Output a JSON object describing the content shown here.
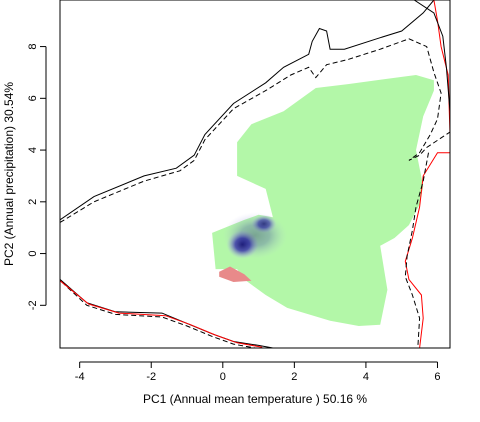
{
  "chart_data": {
    "type": "area",
    "title": "",
    "xlabel": "PC1 (Annual mean temperature ) 50.16 %",
    "ylabel": "PC2 (Annual precipitation) 30.54%",
    "xlim": [
      -4.55,
      6.35
    ],
    "ylim": [
      -3.65,
      9.8
    ],
    "xticks": [
      -4,
      -2,
      0,
      2,
      4,
      6
    ],
    "yticks": [
      -2,
      0,
      2,
      4,
      6,
      8
    ],
    "grid": false,
    "colors": {
      "green_region": "#b3f7a8",
      "blue_density": "#1a1a7a",
      "red_region": "#e88a8a",
      "solid_line": "#000000",
      "dashed_line": "#000000",
      "red_line": "#ff0000"
    },
    "green_region": [
      [
        0.6,
        1.3
      ],
      [
        1.0,
        1.5
      ],
      [
        1.4,
        1.4
      ],
      [
        1.2,
        2.5
      ],
      [
        0.4,
        3.0
      ],
      [
        0.4,
        4.3
      ],
      [
        0.8,
        5.0
      ],
      [
        1.7,
        5.5
      ],
      [
        2.4,
        6.2
      ],
      [
        2.6,
        6.4
      ],
      [
        3.5,
        6.55
      ],
      [
        5.4,
        6.9
      ],
      [
        5.9,
        6.7
      ],
      [
        5.9,
        6.3
      ],
      [
        5.6,
        5.3
      ],
      [
        5.4,
        4.0
      ],
      [
        5.6,
        2.6
      ],
      [
        5.5,
        1.9
      ],
      [
        5.2,
        1.1
      ],
      [
        4.8,
        0.6
      ],
      [
        4.4,
        0.3
      ],
      [
        4.6,
        -1.4
      ],
      [
        4.4,
        -2.75
      ],
      [
        3.8,
        -2.8
      ],
      [
        3.0,
        -2.6
      ],
      [
        1.8,
        -2.1
      ],
      [
        1.2,
        -1.6
      ],
      [
        0.6,
        -1.0
      ],
      [
        0.4,
        -0.6
      ],
      [
        -0.2,
        -0.6
      ],
      [
        -0.3,
        0.8
      ]
    ],
    "red_region": [
      [
        -0.1,
        -0.7
      ],
      [
        0.2,
        -0.5
      ],
      [
        0.6,
        -0.8
      ],
      [
        0.8,
        -1.05
      ],
      [
        0.3,
        -1.1
      ],
      [
        -0.1,
        -0.9
      ]
    ],
    "blue_density": [
      {
        "x": 0.55,
        "y": 0.35,
        "rx": 0.45,
        "ry": 0.55,
        "intensity": 1.0
      },
      {
        "x": 1.15,
        "y": 1.15,
        "rx": 0.35,
        "ry": 0.35,
        "intensity": 0.85
      },
      {
        "x": 0.9,
        "y": 0.7,
        "rx": 0.9,
        "ry": 0.9,
        "intensity": 0.35
      }
    ],
    "solid_outline_inner": [
      [
        -4.55,
        1.3
      ],
      [
        -3.6,
        2.2
      ],
      [
        -2.2,
        3.0
      ],
      [
        -1.3,
        3.3
      ],
      [
        -0.8,
        3.8
      ],
      [
        -0.5,
        4.6
      ],
      [
        0.3,
        5.8
      ],
      [
        1.2,
        6.6
      ],
      [
        1.7,
        7.2
      ],
      [
        2.4,
        7.7
      ],
      [
        2.5,
        8.2
      ],
      [
        2.7,
        8.7
      ],
      [
        2.9,
        8.6
      ],
      [
        3.0,
        7.9
      ],
      [
        3.4,
        7.9
      ],
      [
        4.3,
        8.3
      ],
      [
        5.0,
        8.6
      ],
      [
        5.6,
        9.3
      ],
      [
        5.9,
        9.8
      ]
    ],
    "solid_outline_inner_right": [
      [
        5.9,
        9.8
      ],
      [
        6.0,
        9.0
      ],
      [
        6.1,
        8.0
      ],
      [
        6.3,
        6.9
      ],
      [
        6.35,
        4.6
      ]
    ],
    "dashed_outline": [
      [
        -4.55,
        1.2
      ],
      [
        -3.6,
        2.0
      ],
      [
        -2.2,
        2.8
      ],
      [
        -1.2,
        3.2
      ],
      [
        -0.8,
        3.6
      ],
      [
        -0.5,
        4.4
      ],
      [
        0.3,
        5.6
      ],
      [
        1.2,
        6.3
      ],
      [
        1.9,
        6.9
      ],
      [
        2.4,
        7.2
      ],
      [
        2.6,
        6.8
      ],
      [
        2.9,
        7.3
      ],
      [
        3.5,
        7.5
      ],
      [
        4.4,
        7.9
      ],
      [
        5.2,
        8.3
      ],
      [
        5.7,
        8.0
      ],
      [
        5.9,
        7.0
      ],
      [
        6.1,
        6.2
      ],
      [
        6.0,
        5.2
      ],
      [
        5.8,
        4.6
      ],
      [
        5.5,
        3.9
      ],
      [
        5.2,
        3.6
      ],
      [
        5.5,
        3.8
      ],
      [
        5.7,
        4.1
      ],
      [
        6.35,
        4.7
      ]
    ],
    "solid_outline_outer_top": [
      [
        5.35,
        9.8
      ],
      [
        5.9,
        9.3
      ],
      [
        6.15,
        8.4
      ],
      [
        6.25,
        7.2
      ],
      [
        6.35,
        5.5
      ]
    ],
    "solid_outline_inner_bottom": [
      [
        6.35,
        3.9
      ],
      [
        6.0,
        3.9
      ],
      [
        5.6,
        3.0
      ],
      [
        5.5,
        1.8
      ],
      [
        5.3,
        0.6
      ],
      [
        5.1,
        -0.3
      ],
      [
        5.2,
        -1.0
      ],
      [
        5.55,
        -1.6
      ],
      [
        5.6,
        -2.5
      ],
      [
        5.5,
        -3.65
      ]
    ],
    "dashed_outline_bottom": [
      [
        5.75,
        3.9
      ],
      [
        5.6,
        2.8
      ],
      [
        5.4,
        1.8
      ],
      [
        5.3,
        0.9
      ],
      [
        5.15,
        -0.1
      ],
      [
        5.1,
        -0.9
      ],
      [
        5.3,
        -1.6
      ],
      [
        5.5,
        -2.5
      ],
      [
        5.45,
        -3.65
      ]
    ],
    "solid_outline_lower_left": [
      [
        -4.55,
        -1.0
      ],
      [
        -3.8,
        -1.9
      ],
      [
        -3.0,
        -2.25
      ],
      [
        -1.7,
        -2.3
      ],
      [
        -1.0,
        -2.7
      ],
      [
        -0.3,
        -3.1
      ],
      [
        0.3,
        -3.4
      ],
      [
        1.0,
        -3.55
      ],
      [
        1.4,
        -3.65
      ]
    ],
    "dashed_outline_lower_left": [
      [
        -4.5,
        -1.1
      ],
      [
        -3.8,
        -2.0
      ],
      [
        -3.0,
        -2.35
      ],
      [
        -1.7,
        -2.45
      ],
      [
        -1.0,
        -2.8
      ],
      [
        -0.3,
        -3.2
      ],
      [
        0.3,
        -3.5
      ],
      [
        0.9,
        -3.65
      ]
    ],
    "red_outline_lower_left": [
      [
        -4.55,
        -1.05
      ],
      [
        -3.75,
        -1.95
      ],
      [
        -2.9,
        -2.3
      ],
      [
        -1.6,
        -2.4
      ],
      [
        -0.9,
        -2.75
      ],
      [
        -0.2,
        -3.15
      ],
      [
        0.4,
        -3.45
      ],
      [
        1.1,
        -3.62
      ]
    ]
  }
}
